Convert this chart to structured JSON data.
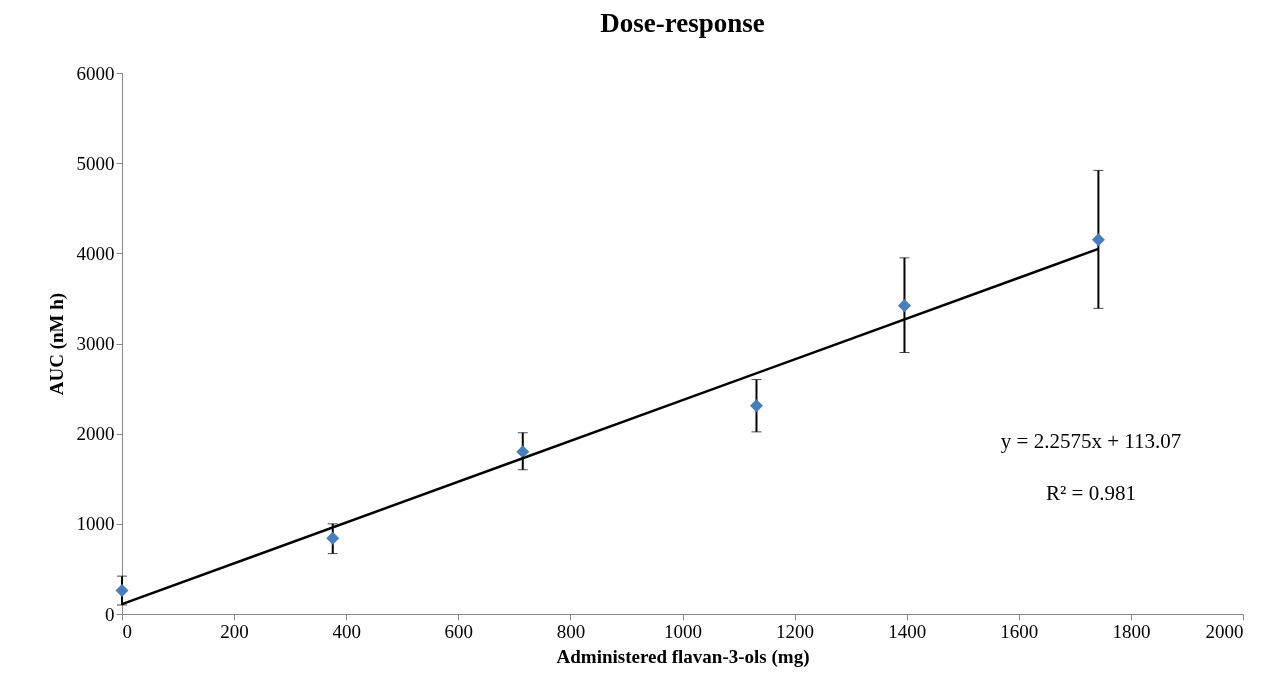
{
  "chart_data": {
    "type": "scatter",
    "title": "Dose-response",
    "xlabel": "Administered  flavan-3-ols (mg)",
    "ylabel": "AUC (nM h)",
    "xlim": [
      0,
      2000
    ],
    "xticks": [
      0,
      200,
      400,
      600,
      800,
      1000,
      1200,
      1400,
      1600,
      1800,
      2000
    ],
    "ylim": [
      0,
      6000
    ],
    "yticks": [
      0,
      1000,
      2000,
      3000,
      4000,
      5000,
      6000
    ],
    "grid": false,
    "series": [
      {
        "color": "#4a7ebb",
        "marker": "diamond",
        "x": [
          0,
          376,
          715,
          1132,
          1396,
          1742
        ],
        "values": [
          260,
          840,
          1800,
          2310,
          3420,
          4150
        ],
        "errors": [
          [
            100,
            420
          ],
          [
            670,
            1000
          ],
          [
            1600,
            2010
          ],
          [
            2020,
            2600
          ],
          [
            2900,
            3950
          ],
          [
            3390,
            4920
          ]
        ]
      },
      {
        "type": "line",
        "color": "#000000",
        "x": [
          0,
          1742
        ],
        "values": [
          110,
          4050
        ]
      }
    ],
    "annotations": [
      "y = 2.2575x + 113.07",
      "R² = 0.981"
    ]
  }
}
